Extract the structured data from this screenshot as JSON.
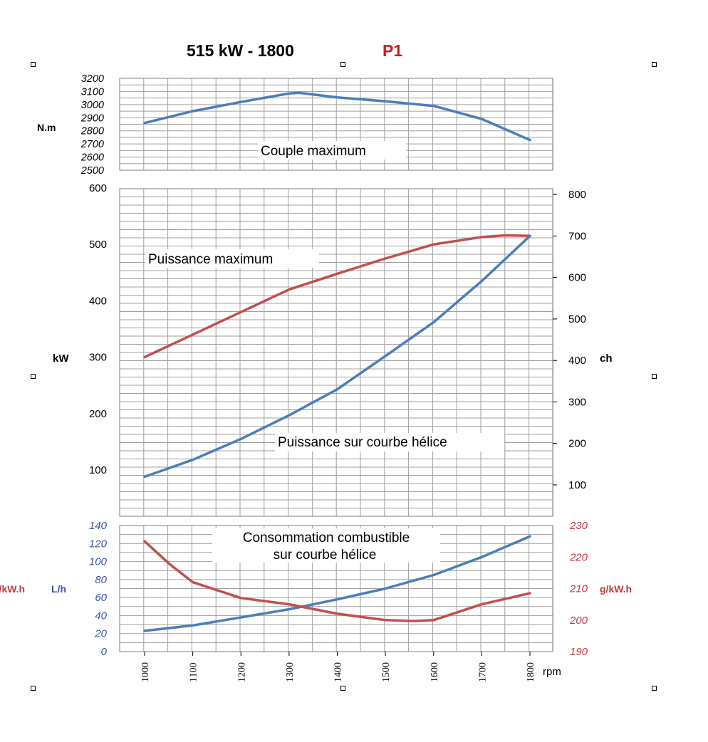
{
  "header": {
    "title": "515 kW - 1800",
    "code": "P1"
  },
  "colors": {
    "blue": "#4a7ebb",
    "red": "#c0504d",
    "grid": "#a0a0a0",
    "consumption_axis_left": "#3a55a8",
    "consumption_axis_right": "#c0393b",
    "title_code": "#d01a1a"
  },
  "chart_data": [
    {
      "type": "line",
      "panel": "torque",
      "text": "Couple maximum",
      "ylabel": "N.m",
      "ylim": [
        2500,
        3200
      ],
      "yticks": [
        2500,
        2600,
        2700,
        2800,
        2900,
        3000,
        3100,
        3200
      ],
      "x": [
        1000,
        1100,
        1200,
        1300,
        1320,
        1400,
        1500,
        1600,
        1700,
        1800
      ],
      "series": [
        {
          "values": [
            2860,
            2950,
            3020,
            3085,
            3090,
            3055,
            3025,
            2990,
            2890,
            2730
          ],
          "color": "blue"
        }
      ],
      "grid": true
    },
    {
      "type": "line",
      "panel": "power",
      "ylabel_left": "kW",
      "ylabel_right": "ch",
      "ylim": [
        0,
        600
      ],
      "yticks": [
        100,
        200,
        300,
        400,
        500,
        600
      ],
      "yticks_right": [
        100,
        200,
        300,
        400,
        500,
        600,
        700,
        800
      ],
      "annotations": [
        "Puissance maximum",
        "Puissance sur courbe hélice"
      ],
      "x": [
        1000,
        1100,
        1200,
        1300,
        1400,
        1500,
        1600,
        1700,
        1750,
        1800
      ],
      "series": [
        {
          "values": [
            300,
            340,
            380,
            420,
            448,
            475,
            500,
            513,
            516,
            515
          ],
          "color": "red"
        },
        {
          "values": [
            88,
            118,
            155,
            197,
            243,
            302,
            362,
            435,
            475,
            515
          ],
          "color": "blue"
        }
      ],
      "grid": true
    },
    {
      "type": "line",
      "panel": "consumption",
      "text": [
        "Consommation combustible",
        "sur courbe hélice"
      ],
      "ylabel_left": "L/h",
      "ylabel_right": "g/kW.h",
      "ylim_left": [
        0,
        140
      ],
      "yticks_left": [
        0,
        20,
        40,
        60,
        80,
        100,
        120,
        140
      ],
      "ylim_right": [
        190,
        230
      ],
      "yticks_right": [
        190,
        200,
        210,
        220,
        230
      ],
      "xlabel": "rpm",
      "x": [
        1000,
        1050,
        1100,
        1200,
        1300,
        1400,
        1500,
        1560,
        1600,
        1650,
        1700,
        1800
      ],
      "series": [
        {
          "values": [
            23,
            26,
            29,
            38,
            47,
            58,
            70,
            79,
            85,
            95,
            105,
            128
          ],
          "color": "blue",
          "axis": "left"
        },
        {
          "values": [
            225,
            218,
            212,
            207,
            205,
            202,
            200,
            199.7,
            200,
            202.5,
            205,
            208.5
          ],
          "color": "red",
          "axis": "right"
        }
      ],
      "xticks": [
        1000,
        1100,
        1200,
        1300,
        1400,
        1500,
        1600,
        1700,
        1800
      ],
      "grid": true
    }
  ]
}
